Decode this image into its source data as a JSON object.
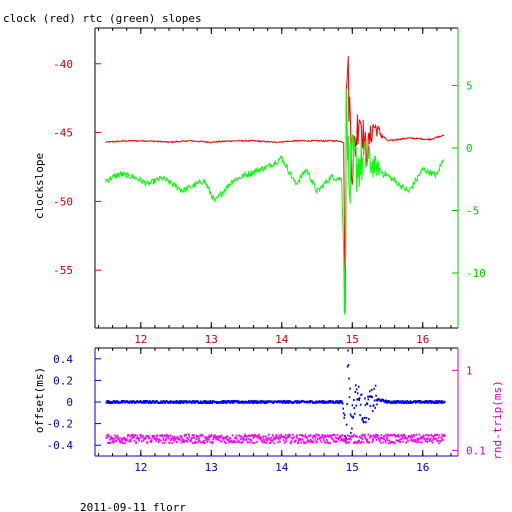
{
  "chart_data": [
    {
      "type": "line",
      "title": "clock (red) rtc (green) slopes",
      "xlabel": "",
      "ylabel": "clockslope",
      "xlim": [
        11.35,
        16.5
      ],
      "ylim": [
        -59.2,
        -37.4
      ],
      "x_ticks": [
        12,
        13,
        14,
        15,
        16
      ],
      "y_ticks_left": [
        -40,
        -45,
        -50,
        -55
      ],
      "right_axis": {
        "ylim": [
          -14.4,
          9.6
        ],
        "ticks": [
          5,
          0,
          -5,
          -10
        ]
      },
      "grid": false,
      "colors": {
        "left_axis": "#cc0000",
        "right_axis": "#00cc00",
        "frame": "#000000"
      },
      "series": [
        {
          "name": "clock",
          "color": "#ff0000",
          "axis": "left",
          "x": [
            11.5,
            11.8,
            12.1,
            12.4,
            12.7,
            13.0,
            13.3,
            13.6,
            13.9,
            14.2,
            14.5,
            14.8,
            14.88,
            14.9,
            14.92,
            14.95,
            15.0,
            15.1,
            15.2,
            15.3,
            15.5,
            15.8,
            16.1,
            16.3
          ],
          "y": [
            -45.7,
            -45.6,
            -45.6,
            -45.7,
            -45.6,
            -45.7,
            -45.6,
            -45.6,
            -45.7,
            -45.6,
            -45.6,
            -45.6,
            -45.7,
            -58.0,
            -39.0,
            -42.0,
            -47.5,
            -43.5,
            -46.5,
            -44.5,
            -45.6,
            -45.4,
            -45.5,
            -45.2
          ]
        },
        {
          "name": "rtc",
          "color": "#00ff00",
          "axis": "right",
          "x": [
            11.5,
            11.7,
            11.9,
            12.1,
            12.3,
            12.6,
            12.9,
            13.05,
            13.3,
            13.6,
            13.8,
            14.0,
            14.2,
            14.35,
            14.5,
            14.7,
            14.85,
            14.9,
            14.92,
            14.95,
            15.0,
            15.2,
            15.5,
            15.8,
            16.0,
            16.2,
            16.3
          ],
          "y": [
            -2.6,
            -2.1,
            -2.3,
            -2.9,
            -2.4,
            -3.4,
            -2.6,
            -4.3,
            -2.6,
            -1.9,
            -1.5,
            -0.8,
            -2.9,
            -1.7,
            -3.5,
            -2.3,
            -2.5,
            -13.0,
            7.0,
            -4.0,
            -1.5,
            -1.0,
            -2.2,
            -3.5,
            -1.7,
            -2.2,
            -0.7
          ]
        }
      ]
    },
    {
      "type": "scatter",
      "title": "",
      "xlabel": "",
      "ylabel": "offset(ms)",
      "xlim": [
        11.35,
        16.5
      ],
      "ylim": [
        -0.5,
        0.5
      ],
      "x_ticks": [
        12,
        13,
        14,
        15,
        16
      ],
      "y_ticks_left": [
        0.4,
        0.2,
        0,
        -0.2,
        -0.4
      ],
      "right_axis": {
        "label": "rnd-trip(ms)",
        "scale": "log",
        "ylim": [
          0.085,
          1.9
        ],
        "ticks": [
          1,
          0.1
        ]
      },
      "grid": false,
      "colors": {
        "left_axis": "#0000cc",
        "right_axis": "#cc00cc",
        "frame": "#000000"
      },
      "series": [
        {
          "name": "offset",
          "color": "#0000ff",
          "axis": "left",
          "x": [
            11.5,
            12.0,
            12.5,
            13.0,
            13.5,
            14.0,
            14.5,
            14.85,
            14.9,
            14.93,
            14.97,
            15.05,
            15.15,
            15.3,
            15.5,
            16.0,
            16.3
          ],
          "y": [
            0.0,
            0.0,
            0.0,
            0.0,
            0.0,
            0.0,
            0.0,
            0.0,
            -0.3,
            0.45,
            -0.2,
            0.1,
            -0.1,
            0.03,
            0.0,
            0.0,
            0.0
          ]
        },
        {
          "name": "rnd-trip",
          "color": "#ff00ff",
          "axis": "right",
          "x": [
            11.5,
            12.0,
            12.5,
            13.0,
            13.5,
            14.0,
            14.5,
            15.0,
            15.5,
            16.0,
            16.3
          ],
          "y": [
            0.14,
            0.14,
            0.14,
            0.14,
            0.14,
            0.14,
            0.14,
            0.14,
            0.14,
            0.14,
            0.14
          ]
        }
      ]
    }
  ],
  "footer": "2011-09-11 florr"
}
